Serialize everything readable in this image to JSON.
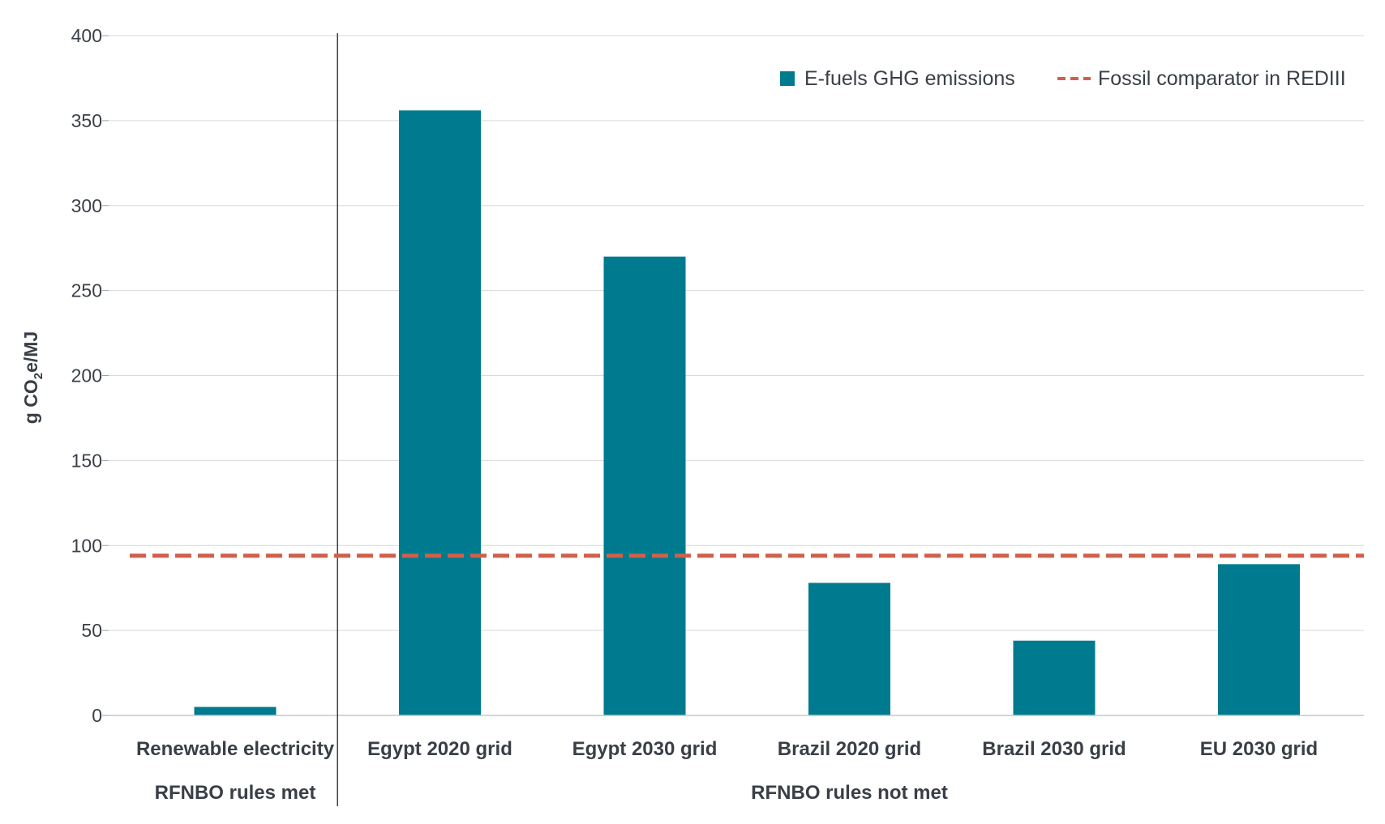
{
  "chart_data": {
    "type": "bar",
    "categories": [
      "Renewable electricity",
      "Egypt 2020 grid",
      "Egypt 2030 grid",
      "Brazil 2020 grid",
      "Brazil 2030 grid",
      "EU 2030 grid"
    ],
    "series": [
      {
        "name": "E-fuels GHG emissions",
        "values": [
          5,
          356,
          270,
          78,
          44,
          89
        ],
        "color": "#007a8e"
      }
    ],
    "reference_line": {
      "name": "Fossil comparator in REDIII",
      "value": 94,
      "color": "#d0604a",
      "style": "dashed"
    },
    "groups": [
      {
        "label": "RFNBO rules met",
        "categories": [
          "Renewable electricity"
        ]
      },
      {
        "label": "RFNBO rules not met",
        "categories": [
          "Egypt 2020 grid",
          "Egypt 2030 grid",
          "Brazil 2020 grid",
          "Brazil 2030 grid",
          "EU 2030 grid"
        ]
      }
    ],
    "ylabel_main": "g CO",
    "ylabel_sub": "2",
    "ylabel_end": "e/MJ",
    "ylim": [
      0,
      400
    ],
    "yticks": [
      "0",
      "50",
      "100",
      "150",
      "200",
      "250",
      "300",
      "350",
      "400"
    ],
    "grid": true,
    "legend_position": "top-right"
  }
}
